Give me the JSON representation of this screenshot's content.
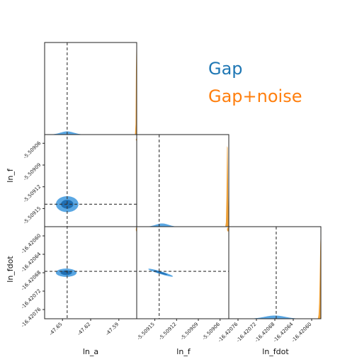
{
  "colors": {
    "gap": "#1f77b4",
    "gap_noise": "#ff7f0e",
    "gap_fill_outer": "#5aa7e3",
    "gap_fill_inner": "#1f6fb4",
    "noise_fill": "#f0a33a",
    "truth_line": "#333333"
  },
  "legend": [
    {
      "label": "Gap",
      "color": "#1f77b4"
    },
    {
      "label": "Gap+noise",
      "color": "#ff7f0e"
    }
  ],
  "chart_data": {
    "type": "corner",
    "parameters": [
      "ln_a",
      "ln_f",
      "ln_fdot"
    ],
    "axis_labels": {
      "ln_a": "ln_a",
      "ln_f": "ln_f",
      "ln_fdot": "ln_fdot"
    },
    "ranges": {
      "ln_a": [
        -47.669,
        -47.571
      ],
      "ln_f": [
        -5.509175,
        -5.509048
      ],
      "ln_fdot": [
        -16.42078,
        -16.42058
      ]
    },
    "ticks": {
      "ln_a": {
        "values": [
          -47.65,
          -47.62,
          -47.59
        ],
        "labels": [
          "-47.65",
          "-47.62",
          "-47.59"
        ]
      },
      "ln_f": {
        "values": [
          -5.50915,
          -5.50912,
          -5.50909,
          -5.50906
        ],
        "labels": [
          "-5.50915",
          "-5.50912",
          "-5.50909",
          "-5.50906"
        ]
      },
      "ln_fdot": {
        "values": [
          -16.42076,
          -16.42072,
          -16.42068,
          -16.42064,
          -16.4206
        ],
        "labels": [
          "-16.42076",
          "-16.42072",
          "-16.42068",
          "-16.42064",
          "-16.42060"
        ]
      }
    },
    "truths": {
      "ln_a": -47.645,
      "ln_f": -5.509144,
      "ln_fdot": -16.420677
    },
    "series": [
      {
        "name": "Gap",
        "color": "#1f77b4",
        "marginals": {
          "ln_a": {
            "mean": -47.645,
            "sd": 0.007,
            "peak_frac": 0.035
          },
          "ln_f": {
            "mean": -5.50914,
            "sd": 8.5e-06,
            "peak_frac": 0.035
          },
          "ln_fdot": {
            "mean": -16.42068,
            "sd": 2.2e-05,
            "peak_frac": 0.035
          }
        },
        "contours": [
          {
            "x": "ln_a",
            "y": "ln_f",
            "mean": [
              -47.645,
              -5.509144
            ],
            "sd": [
              0.006,
              5.5e-06
            ],
            "rho": 0.0
          },
          {
            "x": "ln_a",
            "y": "ln_fdot",
            "mean": [
              -47.646,
              -16.42068
            ],
            "sd": [
              0.0055,
              4.5e-06
            ],
            "rho": 0.0
          },
          {
            "x": "ln_f",
            "y": "ln_fdot",
            "mean": [
              -5.509142,
              -16.42068
            ],
            "sd": [
              8.5e-06,
              4.3e-06
            ],
            "rho": -0.93
          }
        ]
      },
      {
        "name": "Gap+noise",
        "color": "#ff7f0e",
        "marginals": {
          "ln_a": {
            "mean": -47.5715,
            "sd": 0.00035,
            "peak_frac": 0.98
          },
          "ln_f": {
            "mean": -5.50905,
            "sd": 8e-07,
            "peak_frac": 0.98
          },
          "ln_fdot": {
            "mean": -16.42058,
            "sd": 2e-06,
            "peak_frac": 0.98
          }
        },
        "contours": [
          {
            "x": "ln_a",
            "y": "ln_f",
            "mean": [
              -47.5713,
              -5.509055
            ],
            "sd": [
              0.0003,
              7e-07
            ],
            "rho": 0.0
          },
          {
            "x": "ln_a",
            "y": "ln_fdot",
            "mean": [
              -47.5713,
              -16.420586
            ],
            "sd": [
              0.0003,
              2.2e-06
            ],
            "rho": 0.0
          },
          {
            "x": "ln_f",
            "y": "ln_fdot",
            "mean": [
              -5.509049,
              -16.420586
            ],
            "sd": [
              7e-07,
              2.2e-06
            ],
            "rho": 0.0
          }
        ]
      }
    ]
  }
}
